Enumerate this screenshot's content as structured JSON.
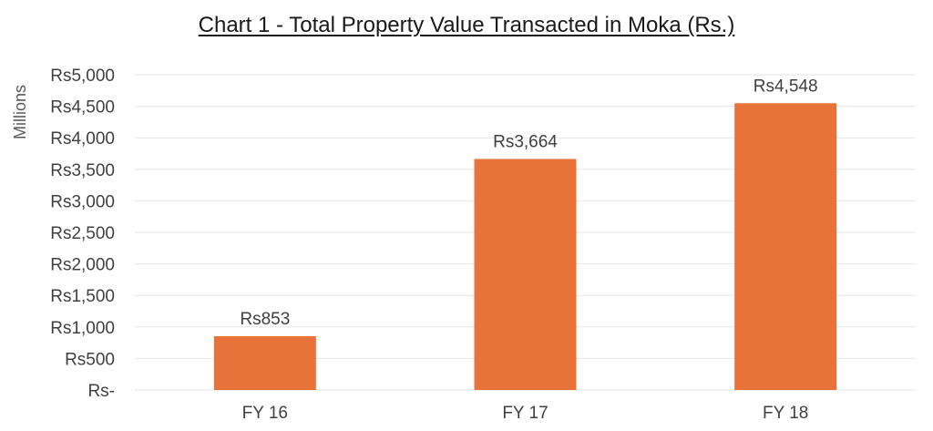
{
  "chart_data": {
    "type": "bar",
    "title": "Chart 1 - Total Property Value Transacted in Moka (Rs.)",
    "ylabel": "Millions",
    "xlabel": "",
    "categories": [
      "FY 16",
      "FY 17",
      "FY 18"
    ],
    "values": [
      853,
      3664,
      4548
    ],
    "data_labels": [
      "Rs853",
      "Rs3,664",
      "Rs4,548"
    ],
    "ylim": [
      0,
      5000
    ],
    "yticks": [
      0,
      500,
      1000,
      1500,
      2000,
      2500,
      3000,
      3500,
      4000,
      4500,
      5000
    ],
    "ytick_labels": [
      "Rs-",
      "Rs500",
      "Rs1,000",
      "Rs1,500",
      "Rs2,000",
      "Rs2,500",
      "Rs3,000",
      "Rs3,500",
      "Rs4,000",
      "Rs4,500",
      "Rs5,000"
    ],
    "grid": true,
    "bar_color": "#E8733A",
    "grid_color": "#E6E6E6",
    "legend": "none"
  }
}
